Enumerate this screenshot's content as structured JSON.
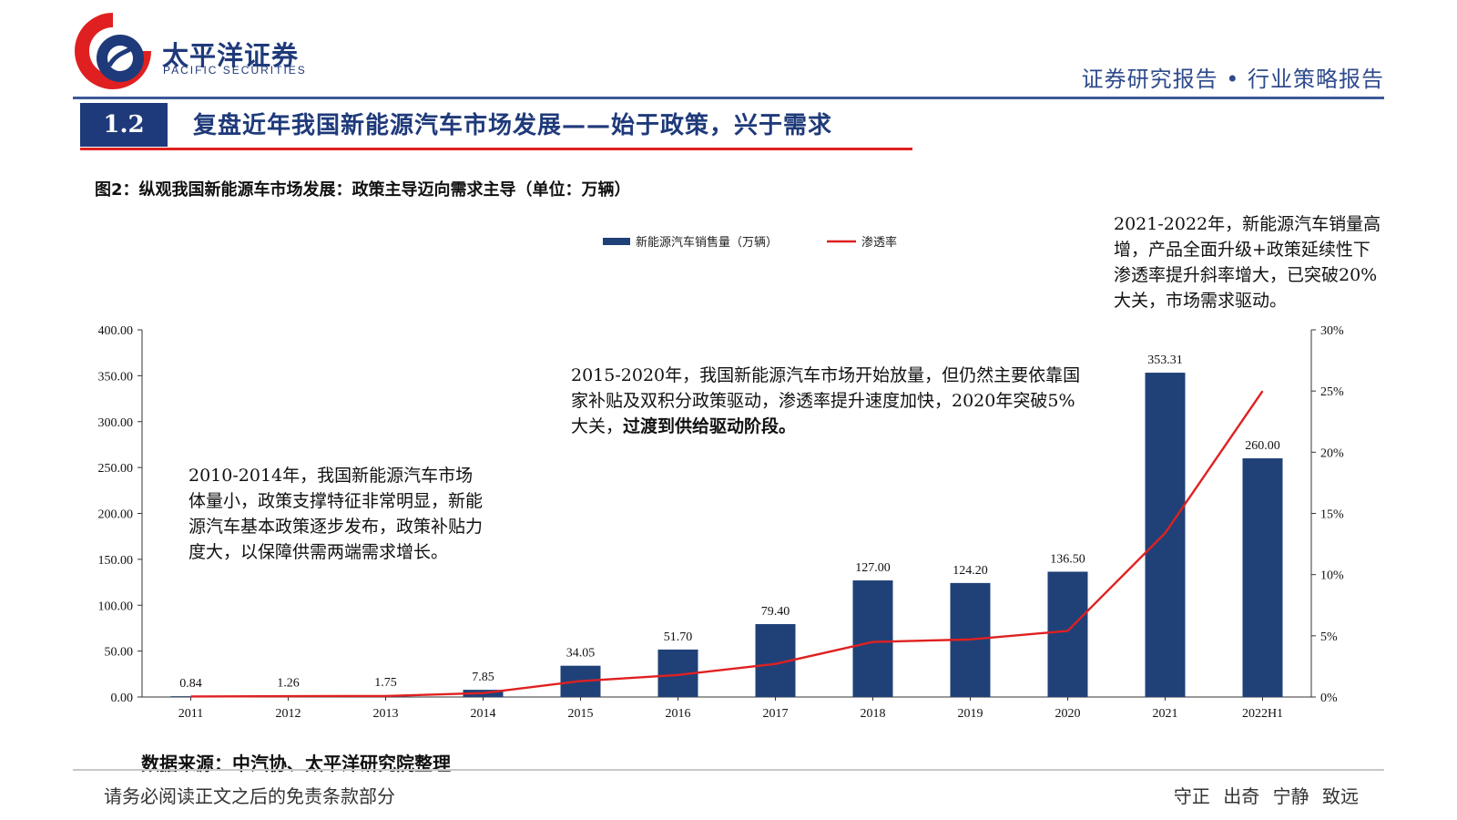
{
  "header": {
    "brand_name": "太平洋证券",
    "brand_sub": "PACIFIC SECURITIES",
    "report_type": "证券研究报告 • 行业策略报告",
    "brand_color": "#1f3a7a",
    "accent_color": "#e02020"
  },
  "section": {
    "number": "1.2",
    "title": "复盘近年我国新能源汽车市场发展——始于政策，兴于需求"
  },
  "figure": {
    "title": "图2：纵观我国新能源车市场发展：政策主导迈向需求主导（单位：万辆）",
    "source": "数据来源：中汽协、太平洋研究院整理"
  },
  "notes": {
    "a": "2010-2014年，我国新能源汽车市场体量小，政策支撑特征非常明显，新能源汽车基本政策逐步发布，政策补贴力度大，以保障供需两端需求增长。",
    "b_plain": "2015-2020年，我国新能源汽车市场开始放量，但仍然主要依靠国家补贴及双积分政策驱动，渗透率提升速度加快，2020年突破5%大关，",
    "b_bold": "过渡到供给驱动阶段。",
    "c": "2021-2022年，新能源汽车销量高增，产品全面升级+政策延续性下渗透率提升斜率增大，已突破20%大关，市场需求驱动。"
  },
  "footer": {
    "left": "请务必阅读正文之后的免责条款部分",
    "right": "守正 出奇 宁静 致远"
  },
  "chart_data": {
    "type": "bar",
    "categories": [
      "2011",
      "2012",
      "2013",
      "2014",
      "2015",
      "2016",
      "2017",
      "2018",
      "2019",
      "2020",
      "2021",
      "2022H1"
    ],
    "series": [
      {
        "name": "新能源汽车销售量（万辆）",
        "type": "bar",
        "axis": "left",
        "color": "#1f4178",
        "values": [
          0.84,
          1.26,
          1.75,
          7.85,
          34.05,
          51.7,
          79.4,
          127.0,
          124.2,
          136.5,
          353.31,
          260.0
        ],
        "labels": [
          "0.84",
          "1.26",
          "1.75",
          "7.85",
          "34.05",
          "51.70",
          "79.40",
          "127.00",
          "124.20",
          "136.50",
          "353.31",
          "260.00"
        ]
      },
      {
        "name": "渗透率",
        "type": "line",
        "axis": "right",
        "color": "#e02020",
        "values": [
          0.04,
          0.07,
          0.08,
          0.32,
          1.3,
          1.8,
          2.7,
          4.5,
          4.7,
          5.4,
          13.4,
          25.0
        ]
      }
    ],
    "y_left": {
      "min": 0,
      "max": 400,
      "ticks": [
        "0.00",
        "50.00",
        "100.00",
        "150.00",
        "200.00",
        "250.00",
        "300.00",
        "350.00",
        "400.00"
      ]
    },
    "y_right": {
      "min": 0,
      "max": 30,
      "ticks": [
        "0%",
        "5%",
        "10%",
        "15%",
        "20%",
        "25%",
        "30%"
      ]
    },
    "legend": "top-center",
    "grid": false
  }
}
